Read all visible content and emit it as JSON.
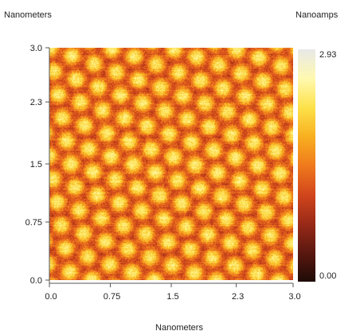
{
  "chart_data": {
    "type": "heatmap",
    "xlabel": "Nanometers",
    "ylabel": "Nanometers",
    "colorbar_label": "Nanoamps",
    "x_ticks": [
      "0.0",
      "0.75",
      "1.5",
      "2.3",
      "3.0"
    ],
    "y_ticks": [
      "0.0",
      "0.75",
      "1.5",
      "2.3",
      "3.0"
    ],
    "xlim": [
      0,
      3.0
    ],
    "ylim": [
      0,
      3.0
    ],
    "colorbar_range": [
      0.0,
      2.93
    ],
    "colorbar_max_label": "2.93",
    "colorbar_min_label": "0.00",
    "colormap": [
      "#1e0b06",
      "#5a1810",
      "#9a2a18",
      "#d2461c",
      "#f07a1c",
      "#f8b020",
      "#fde24a",
      "#fff9b0",
      "#e8e8e8"
    ],
    "grid": false,
    "lattice": {
      "pattern": "hexagonal atomic lattice",
      "spacing_nm": 0.29
    }
  }
}
